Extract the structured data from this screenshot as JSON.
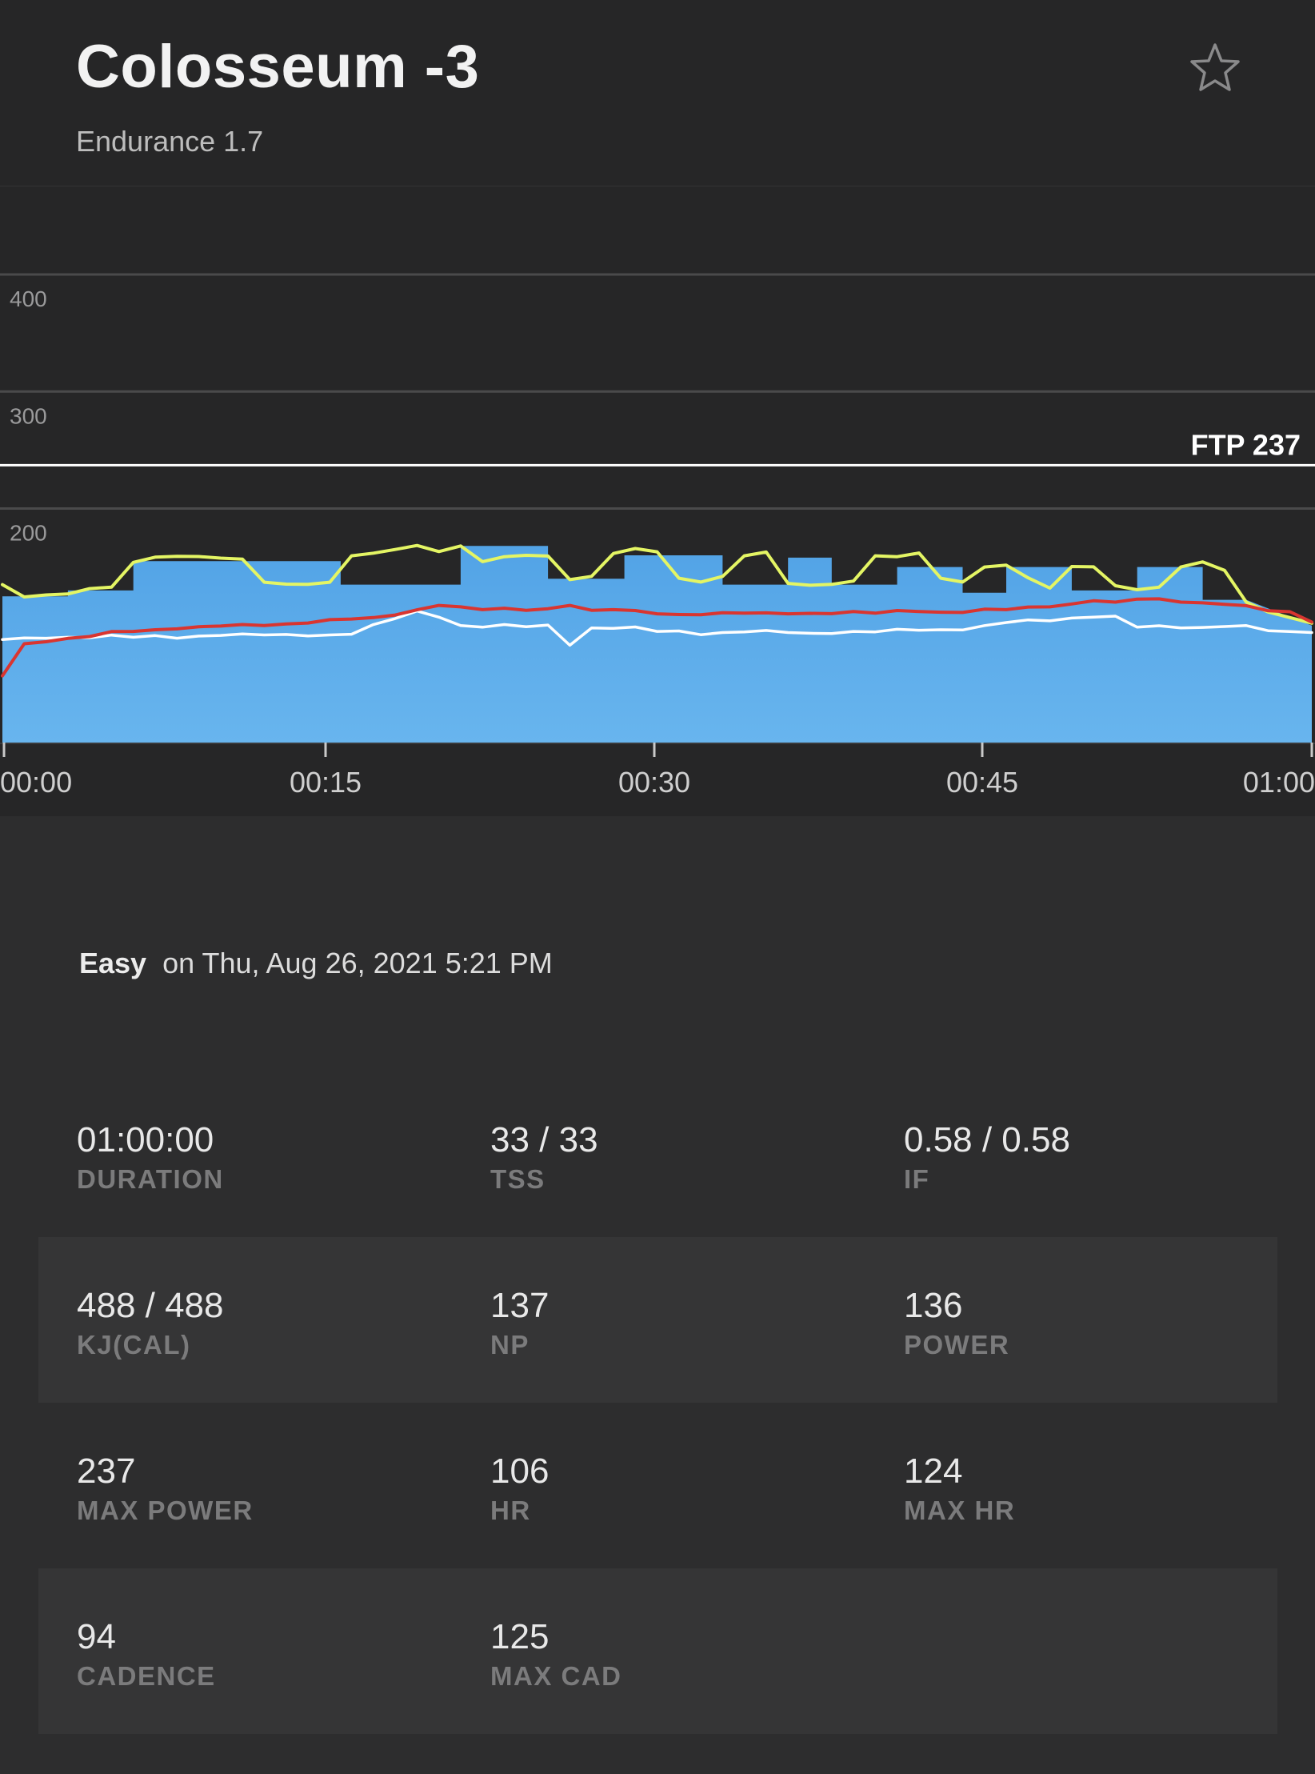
{
  "header": {
    "title": "Colosseum -3",
    "subtitle": "Endurance 1.7",
    "favorite_icon": "star-icon"
  },
  "chart_data": {
    "type": "area",
    "x_tick_labels": [
      "00:00",
      "00:15",
      "00:30",
      "00:45",
      "01:00"
    ],
    "x_range_minutes": [
      0,
      60
    ],
    "y_tick_labels": [
      "400",
      "300",
      "200"
    ],
    "y_gridlines": [
      400,
      300,
      200
    ],
    "ylim": [
      0,
      480
    ],
    "ftp": {
      "label": "FTP 237",
      "value": 237
    },
    "grid": true,
    "colors": {
      "target_power_fill": "#52a3e6",
      "power_line": "#e4f564",
      "heart_rate_line": "#d93530",
      "cadence_line": "#ffffff",
      "ftp_line": "#ffffff"
    },
    "series": [
      {
        "key": "target_power",
        "x": [
          0,
          3,
          3,
          6,
          6,
          15.5,
          15.5,
          21,
          21,
          25,
          25,
          28.5,
          28.5,
          33,
          33,
          36,
          36,
          38,
          38,
          41,
          41,
          44,
          44,
          46,
          46,
          49,
          49,
          52,
          52,
          55,
          55,
          57,
          60
        ],
        "values": [
          125,
          125,
          130,
          130,
          155,
          155,
          135,
          135,
          168,
          168,
          140,
          140,
          160,
          160,
          135,
          135,
          158,
          158,
          135,
          135,
          150,
          150,
          128,
          128,
          150,
          150,
          130,
          130,
          150,
          150,
          122,
          122,
          100
        ]
      },
      {
        "key": "power",
        "x": [
          0,
          1,
          2,
          3,
          4,
          5,
          6,
          7,
          8,
          9,
          10,
          11,
          12,
          13,
          14,
          15,
          16,
          17,
          18,
          19,
          20,
          21,
          22,
          23,
          24,
          25,
          26,
          27,
          28,
          29,
          30,
          31,
          32,
          33,
          34,
          35,
          36,
          37,
          38,
          39,
          40,
          41,
          42,
          43,
          44,
          45,
          46,
          47,
          48,
          49,
          50,
          51,
          52,
          53,
          54,
          55,
          56,
          57,
          58,
          59,
          60
        ],
        "values": [
          135,
          124,
          127,
          127,
          132,
          132,
          154,
          158,
          160,
          159,
          158,
          156,
          137,
          135,
          136,
          137,
          160,
          161,
          165,
          168,
          164,
          168,
          155,
          158,
          160,
          159,
          140,
          142,
          162,
          165,
          163,
          140,
          138,
          142,
          160,
          162,
          136,
          134,
          136,
          138,
          160,
          158,
          162,
          140,
          138,
          150,
          152,
          140,
          132,
          150,
          151,
          134,
          131,
          132,
          150,
          154,
          148,
          120,
          112,
          106,
          102
        ]
      },
      {
        "key": "heart_rate",
        "x": [
          0,
          1,
          2,
          3,
          4,
          5,
          6,
          7,
          8,
          9,
          10,
          11,
          12,
          13,
          14,
          15,
          16,
          17,
          18,
          19,
          20,
          21,
          22,
          23,
          24,
          25,
          26,
          27,
          28,
          29,
          30,
          31,
          32,
          33,
          34,
          35,
          36,
          37,
          38,
          39,
          40,
          41,
          42,
          43,
          44,
          45,
          46,
          47,
          48,
          49,
          50,
          51,
          52,
          53,
          54,
          55,
          56,
          57,
          58,
          59,
          60
        ],
        "values": [
          57,
          84,
          87,
          89,
          91,
          94,
          95,
          96,
          98,
          99,
          100,
          100,
          100,
          101,
          103,
          105,
          106,
          106,
          109,
          113,
          118,
          116,
          114,
          114,
          113,
          114,
          118,
          113,
          114,
          112,
          110,
          109,
          110,
          111,
          111,
          110,
          110,
          110,
          111,
          112,
          111,
          112,
          112,
          111,
          112,
          114,
          114,
          115,
          116,
          118,
          122,
          120,
          123,
          122,
          120,
          119,
          119,
          117,
          113,
          111,
          103
        ]
      },
      {
        "key": "cadence",
        "x": [
          0,
          1,
          2,
          3,
          4,
          5,
          6,
          7,
          8,
          9,
          10,
          11,
          12,
          13,
          14,
          15,
          16,
          17,
          18,
          19,
          20,
          21,
          22,
          23,
          24,
          25,
          26,
          27,
          28,
          29,
          30,
          31,
          32,
          33,
          34,
          35,
          36,
          37,
          38,
          39,
          40,
          41,
          42,
          43,
          44,
          45,
          46,
          47,
          48,
          49,
          50,
          51,
          52,
          53,
          54,
          55,
          56,
          57,
          58,
          59,
          60
        ],
        "values": [
          88,
          89,
          90,
          90,
          90,
          91,
          90,
          91,
          90,
          91,
          92,
          92,
          92,
          92,
          92,
          92,
          93,
          100,
          106,
          112,
          108,
          100,
          99,
          100,
          99,
          100,
          84,
          98,
          98,
          98,
          95,
          95,
          93,
          94,
          95,
          95,
          94,
          93,
          94,
          95,
          95,
          96,
          96,
          96,
          97,
          100,
          103,
          104,
          104,
          106,
          108,
          108,
          99,
          99,
          98,
          98,
          100,
          100,
          96,
          94,
          94
        ]
      }
    ]
  },
  "summary": {
    "rating": "Easy",
    "date_text": "on Thu, Aug 26, 2021 5:21 PM"
  },
  "stats": [
    [
      {
        "value": "01:00:00",
        "label": "DURATION"
      },
      {
        "value": "33 / 33",
        "label": "TSS"
      },
      {
        "value": "0.58 / 0.58",
        "label": "IF"
      }
    ],
    [
      {
        "value": "488 / 488",
        "label": "KJ(CAL)"
      },
      {
        "value": "137",
        "label": "NP"
      },
      {
        "value": "136",
        "label": "POWER"
      }
    ],
    [
      {
        "value": "237",
        "label": "MAX POWER"
      },
      {
        "value": "106",
        "label": "HR"
      },
      {
        "value": "124",
        "label": "MAX HR"
      }
    ],
    [
      {
        "value": "94",
        "label": "CADENCE"
      },
      {
        "value": "125",
        "label": "MAX CAD"
      }
    ]
  ]
}
